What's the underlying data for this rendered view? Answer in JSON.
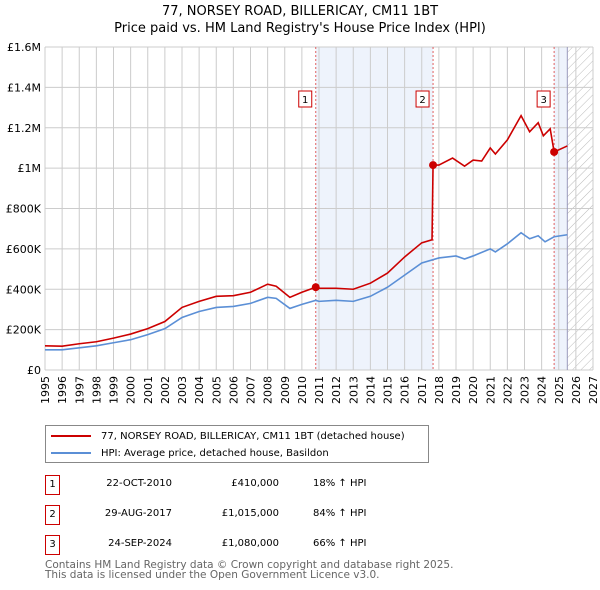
{
  "chart_data": {
    "type": "line",
    "title": "77, NORSEY ROAD, BILLERICAY, CM11 1BT",
    "subtitle": "Price paid vs. HM Land Registry's House Price Index (HPI)",
    "xlim": [
      1995,
      2027
    ],
    "ylim": [
      0,
      1600000
    ],
    "x_ticks": [
      "1995",
      "1996",
      "1997",
      "1998",
      "1999",
      "2000",
      "2001",
      "2002",
      "2003",
      "2004",
      "2005",
      "2006",
      "2007",
      "2008",
      "2009",
      "2010",
      "2011",
      "2012",
      "2013",
      "2014",
      "2015",
      "2016",
      "2017",
      "2018",
      "2019",
      "2020",
      "2021",
      "2022",
      "2023",
      "2024",
      "2025",
      "2026",
      "2027"
    ],
    "y_ticks": [
      {
        "v": 0,
        "label": "£0"
      },
      {
        "v": 200000,
        "label": "£200K"
      },
      {
        "v": 400000,
        "label": "£400K"
      },
      {
        "v": 600000,
        "label": "£600K"
      },
      {
        "v": 800000,
        "label": "£800K"
      },
      {
        "v": 1000000,
        "label": "£1M"
      },
      {
        "v": 1200000,
        "label": "£1.2M"
      },
      {
        "v": 1400000,
        "label": "£1.4M"
      },
      {
        "v": 1600000,
        "label": "£1.6M"
      }
    ],
    "grid": true,
    "shaded_ranges": [
      [
        2010.81,
        2017.66
      ],
      [
        2024.73,
        2025.5
      ]
    ],
    "forecast_hatch_from": 2025.5,
    "series": [
      {
        "name": "77, NORSEY ROAD, BILLERICAY, CM11 1BT (detached house)",
        "color": "#cc0000",
        "points": [
          [
            1995,
            120000
          ],
          [
            1996,
            118000
          ],
          [
            1997,
            130000
          ],
          [
            1998,
            140000
          ],
          [
            1999,
            158000
          ],
          [
            2000,
            178000
          ],
          [
            2001,
            205000
          ],
          [
            2002,
            240000
          ],
          [
            2003,
            310000
          ],
          [
            2004,
            340000
          ],
          [
            2005,
            365000
          ],
          [
            2006,
            368000
          ],
          [
            2007,
            385000
          ],
          [
            2008,
            425000
          ],
          [
            2008.5,
            415000
          ],
          [
            2009.3,
            360000
          ],
          [
            2010,
            385000
          ],
          [
            2010.81,
            410000
          ],
          [
            2011,
            405000
          ],
          [
            2012,
            405000
          ],
          [
            2013,
            400000
          ],
          [
            2014,
            430000
          ],
          [
            2015,
            480000
          ],
          [
            2016,
            560000
          ],
          [
            2017,
            630000
          ],
          [
            2017.6,
            645000
          ],
          [
            2017.66,
            1015000
          ],
          [
            2018,
            1015000
          ],
          [
            2018.8,
            1050000
          ],
          [
            2019.5,
            1010000
          ],
          [
            2020,
            1040000
          ],
          [
            2020.5,
            1035000
          ],
          [
            2021,
            1100000
          ],
          [
            2021.3,
            1070000
          ],
          [
            2022,
            1140000
          ],
          [
            2022.8,
            1260000
          ],
          [
            2023.3,
            1180000
          ],
          [
            2023.8,
            1225000
          ],
          [
            2024.1,
            1160000
          ],
          [
            2024.5,
            1195000
          ],
          [
            2024.73,
            1080000
          ],
          [
            2025.5,
            1110000
          ]
        ]
      },
      {
        "name": "HPI: Average price, detached house, Basildon",
        "color": "#5b8fd6",
        "points": [
          [
            1995,
            100000
          ],
          [
            1996,
            100000
          ],
          [
            1997,
            110000
          ],
          [
            1998,
            120000
          ],
          [
            1999,
            135000
          ],
          [
            2000,
            150000
          ],
          [
            2001,
            175000
          ],
          [
            2002,
            205000
          ],
          [
            2003,
            260000
          ],
          [
            2004,
            290000
          ],
          [
            2005,
            310000
          ],
          [
            2006,
            315000
          ],
          [
            2007,
            330000
          ],
          [
            2008,
            360000
          ],
          [
            2008.5,
            355000
          ],
          [
            2009.3,
            305000
          ],
          [
            2010,
            325000
          ],
          [
            2010.81,
            345000
          ],
          [
            2011,
            340000
          ],
          [
            2012,
            345000
          ],
          [
            2013,
            340000
          ],
          [
            2014,
            365000
          ],
          [
            2015,
            410000
          ],
          [
            2016,
            470000
          ],
          [
            2017,
            530000
          ],
          [
            2018,
            555000
          ],
          [
            2019,
            565000
          ],
          [
            2019.5,
            550000
          ],
          [
            2020,
            565000
          ],
          [
            2021,
            600000
          ],
          [
            2021.3,
            585000
          ],
          [
            2022,
            625000
          ],
          [
            2022.8,
            680000
          ],
          [
            2023.3,
            650000
          ],
          [
            2023.8,
            665000
          ],
          [
            2024.2,
            635000
          ],
          [
            2024.73,
            660000
          ],
          [
            2025.5,
            670000
          ]
        ]
      }
    ],
    "sales": [
      {
        "n": "1",
        "date": "22-OCT-2010",
        "price": "£410,000",
        "hpi": "18% ↑ HPI",
        "x": 2010.81,
        "y": 410000
      },
      {
        "n": "2",
        "date": "29-AUG-2017",
        "price": "£1,015,000",
        "hpi": "84% ↑ HPI",
        "x": 2017.66,
        "y": 1015000
      },
      {
        "n": "3",
        "date": "24-SEP-2024",
        "price": "£1,080,000",
        "hpi": "66% ↑ HPI",
        "x": 2024.73,
        "y": 1080000
      }
    ]
  },
  "footer": {
    "line1": "Contains HM Land Registry data © Crown copyright and database right 2025.",
    "line2": "This data is licensed under the Open Government Licence v3.0."
  }
}
